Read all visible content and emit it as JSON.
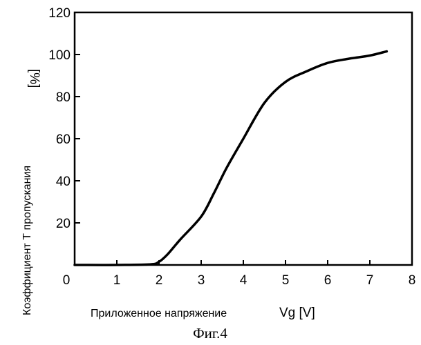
{
  "chart_data": {
    "type": "line",
    "caption": "Фиг.4",
    "xlabel": "Приложенное напряжение",
    "xunit": "Vg [V]",
    "ylabel": "Коэффициент Т пропускания",
    "yunit": "[%]",
    "xlim": [
      0,
      8
    ],
    "ylim": [
      0,
      120
    ],
    "xticks": [
      "0",
      "1",
      "2",
      "3",
      "4",
      "5",
      "6",
      "7",
      "8"
    ],
    "yticks": [
      "20",
      "40",
      "60",
      "80",
      "100",
      "120"
    ],
    "grid": false,
    "series": [
      {
        "x": [
          0,
          1.0,
          1.8,
          2.0,
          2.2,
          2.5,
          3.0,
          3.3,
          3.6,
          4.0,
          4.5,
          5.0,
          5.5,
          6.0,
          6.5,
          7.0,
          7.4
        ],
        "y": [
          0,
          0,
          0.3,
          1.5,
          5,
          12,
          23,
          34,
          46,
          60,
          77,
          87,
          92,
          96,
          98,
          99.5,
          101.5
        ]
      }
    ]
  }
}
